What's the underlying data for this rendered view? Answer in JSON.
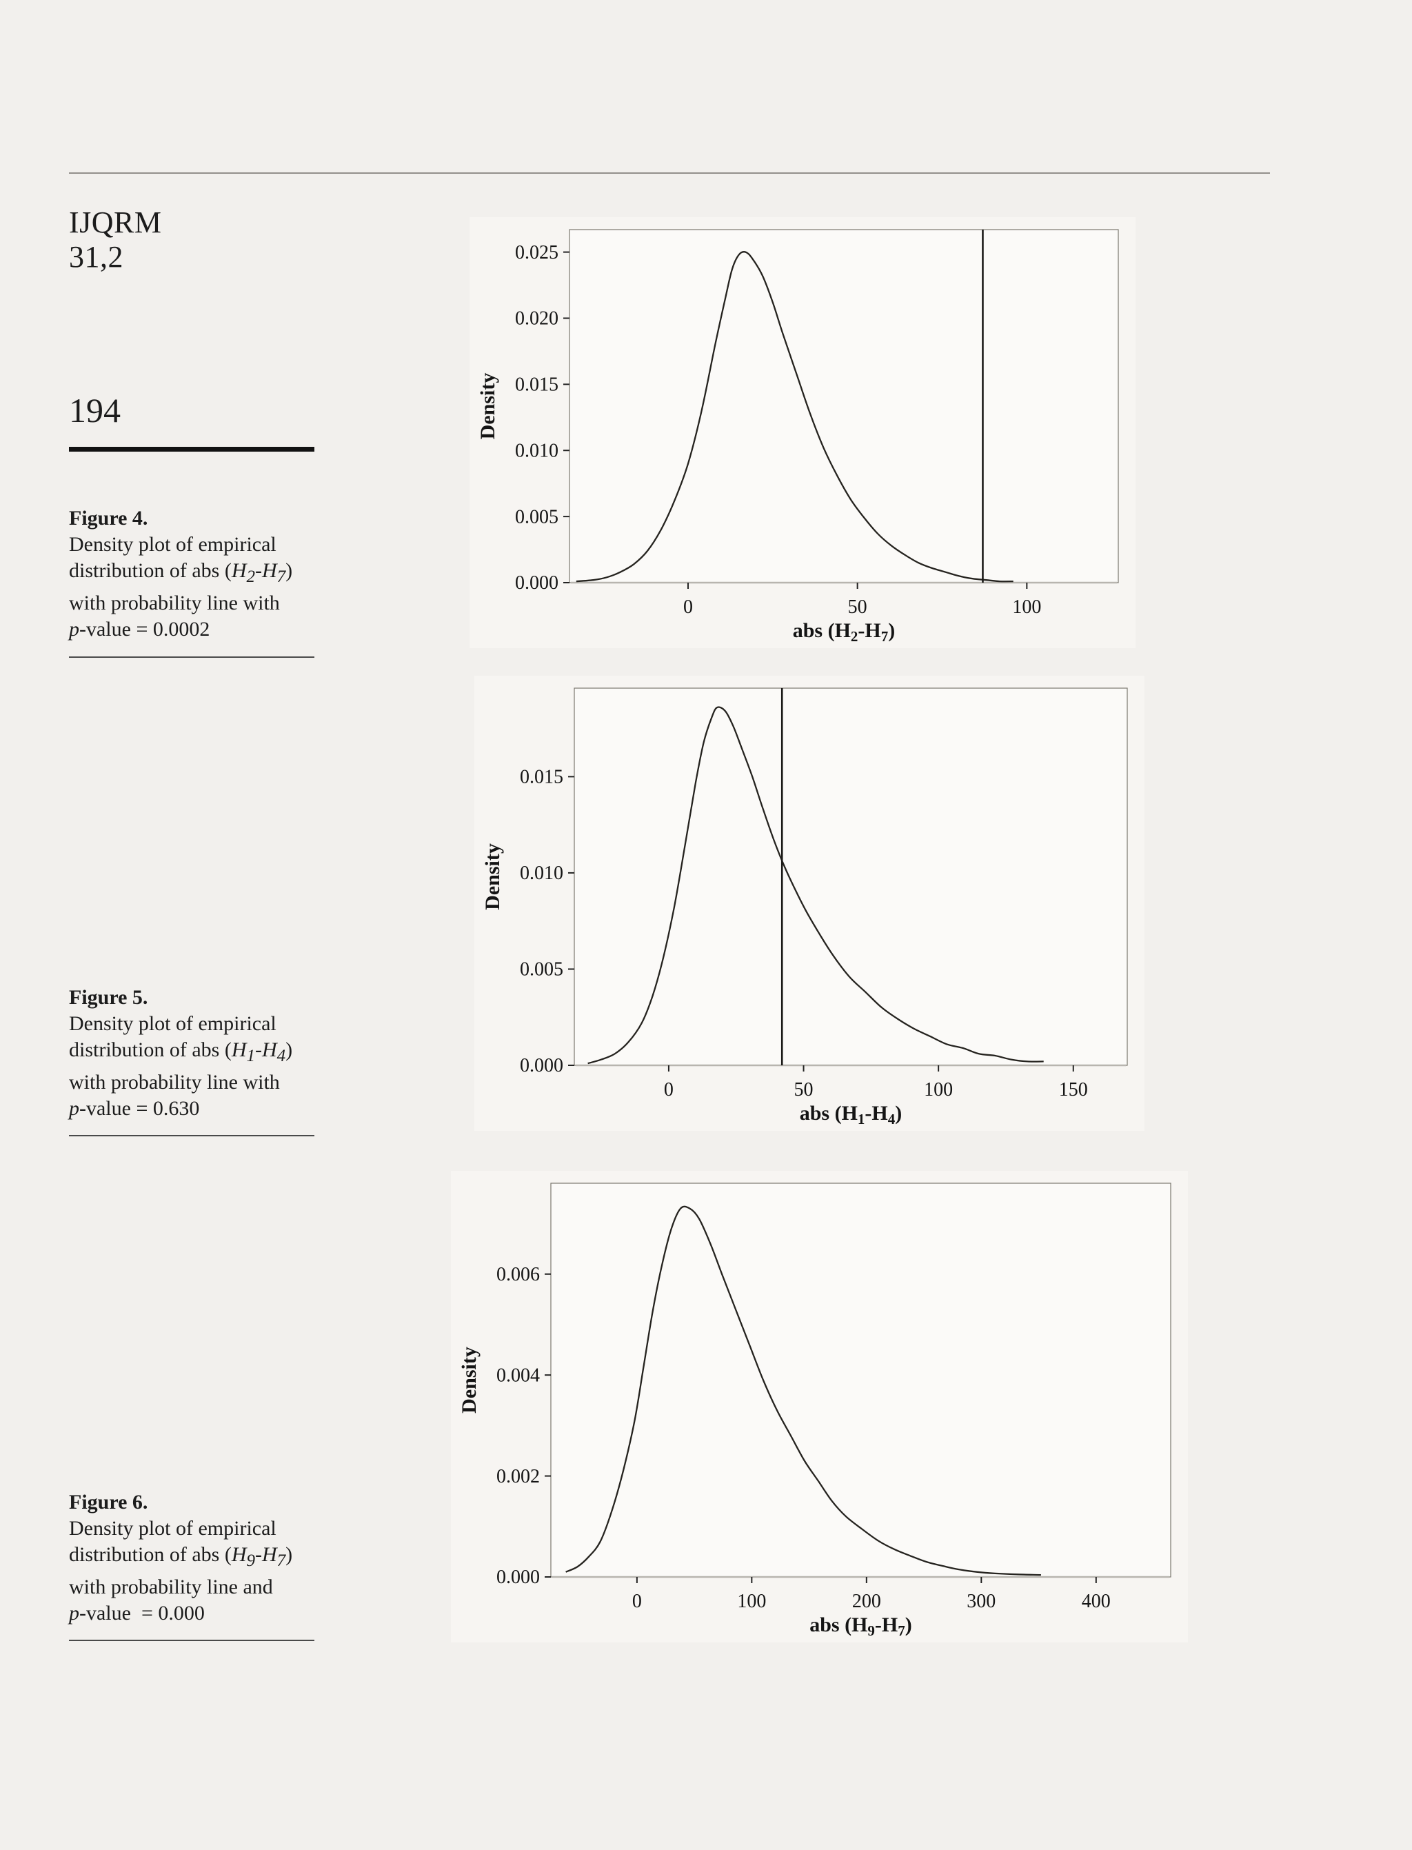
{
  "page": {
    "journal": "IJQRM",
    "issue": "31,2",
    "page_number": "194"
  },
  "captions": [
    {
      "title": "Figure 4.",
      "lines": [
        "Density plot of empirical",
        "distribution of abs (<i>H<sub>2</sub>-H<sub>7</sub></i>)",
        "with probability line with",
        "<i>p</i>-value = 0.0002"
      ]
    },
    {
      "title": "Figure 5.",
      "lines": [
        "Density plot of empirical",
        "distribution of abs (<i>H<sub>1</sub>-H<sub>4</sub></i>)",
        "with probability line with",
        "<i>p</i>-value = 0.630"
      ]
    },
    {
      "title": "Figure 6.",
      "lines": [
        "Density plot of empirical",
        "distribution of abs (<i>H<sub>9</sub>-H<sub>7</sub></i>)",
        "with probability line and",
        "<i>p</i>-value &nbsp;= 0.000"
      ]
    }
  ],
  "chart_data": [
    {
      "name": "figure-4-density-plot",
      "type": "line",
      "ylabel": "Density",
      "xlabel": "abs (H₂-H₇)",
      "ylabel_parts": [
        {
          "t": "Density"
        }
      ],
      "xlabel_parts": [
        {
          "t": "abs (H"
        },
        {
          "t": "2",
          "sub": true
        },
        {
          "t": "-H"
        },
        {
          "t": "7",
          "sub": true
        },
        {
          "t": ")"
        }
      ],
      "xlim": [
        -35,
        127
      ],
      "ylim": [
        0,
        0.0267
      ],
      "xticks": [
        0,
        50,
        100
      ],
      "yticks": [
        0,
        0.005,
        0.01,
        0.015,
        0.02,
        0.025
      ],
      "ytick_decimals": 3,
      "probability_line_x": 87,
      "zero_line": true,
      "legend": "none",
      "grid": false,
      "curve": [
        [
          -33,
          0.0001
        ],
        [
          -28,
          0.0002
        ],
        [
          -24,
          0.0004
        ],
        [
          -20,
          0.0008
        ],
        [
          -16,
          0.0014
        ],
        [
          -12,
          0.0024
        ],
        [
          -8,
          0.004
        ],
        [
          -4,
          0.0062
        ],
        [
          0,
          0.009
        ],
        [
          4,
          0.013
        ],
        [
          8,
          0.018
        ],
        [
          11,
          0.0215
        ],
        [
          13,
          0.0237
        ],
        [
          15,
          0.0248
        ],
        [
          17,
          0.025
        ],
        [
          19,
          0.0245
        ],
        [
          22,
          0.0232
        ],
        [
          25,
          0.0212
        ],
        [
          28,
          0.0188
        ],
        [
          32,
          0.0158
        ],
        [
          36,
          0.0128
        ],
        [
          40,
          0.0102
        ],
        [
          44,
          0.0081
        ],
        [
          48,
          0.0063
        ],
        [
          52,
          0.0049
        ],
        [
          56,
          0.0037
        ],
        [
          60,
          0.0028
        ],
        [
          64,
          0.0021
        ],
        [
          68,
          0.0015
        ],
        [
          72,
          0.0011
        ],
        [
          76,
          0.0008
        ],
        [
          80,
          0.0005
        ],
        [
          84,
          0.0003
        ],
        [
          88,
          0.0002
        ],
        [
          92,
          0.0001
        ],
        [
          96,
          0.0001
        ]
      ]
    },
    {
      "name": "figure-5-density-plot",
      "type": "line",
      "ylabel": "Density",
      "xlabel": "abs (H₁-H₄)",
      "ylabel_parts": [
        {
          "t": "Density"
        }
      ],
      "xlabel_parts": [
        {
          "t": "abs (H"
        },
        {
          "t": "1",
          "sub": true
        },
        {
          "t": "-H"
        },
        {
          "t": "4",
          "sub": true
        },
        {
          "t": ")"
        }
      ],
      "xlim": [
        -35,
        170
      ],
      "ylim": [
        0,
        0.0196
      ],
      "xticks": [
        0,
        50,
        100,
        150
      ],
      "yticks": [
        0,
        0.005,
        0.01,
        0.015
      ],
      "ytick_decimals": 3,
      "probability_line_x": 42,
      "zero_line": true,
      "legend": "none",
      "grid": false,
      "curve": [
        [
          -30,
          0.0001
        ],
        [
          -25,
          0.0003
        ],
        [
          -20,
          0.0006
        ],
        [
          -15,
          0.0012
        ],
        [
          -10,
          0.0022
        ],
        [
          -6,
          0.0036
        ],
        [
          -2,
          0.0056
        ],
        [
          2,
          0.0082
        ],
        [
          6,
          0.0114
        ],
        [
          10,
          0.0147
        ],
        [
          13,
          0.0168
        ],
        [
          16,
          0.0181
        ],
        [
          18,
          0.0186
        ],
        [
          21,
          0.0184
        ],
        [
          24,
          0.0176
        ],
        [
          27,
          0.0165
        ],
        [
          31,
          0.015
        ],
        [
          35,
          0.0133
        ],
        [
          39,
          0.0117
        ],
        [
          43,
          0.0103
        ],
        [
          47,
          0.0091
        ],
        [
          51,
          0.008
        ],
        [
          56,
          0.0068
        ],
        [
          61,
          0.0057
        ],
        [
          67,
          0.0046
        ],
        [
          73,
          0.0038
        ],
        [
          79,
          0.003
        ],
        [
          85,
          0.0024
        ],
        [
          91,
          0.0019
        ],
        [
          97,
          0.0015
        ],
        [
          103,
          0.0011
        ],
        [
          109,
          0.0009
        ],
        [
          115,
          0.0006
        ],
        [
          121,
          0.0005
        ],
        [
          127,
          0.0003
        ],
        [
          133,
          0.0002
        ],
        [
          139,
          0.0002
        ]
      ]
    },
    {
      "name": "figure-6-density-plot",
      "type": "line",
      "ylabel": "Density",
      "xlabel": "abs (H₉-H₇)",
      "ylabel_parts": [
        {
          "t": "Density"
        }
      ],
      "xlabel_parts": [
        {
          "t": "abs (H"
        },
        {
          "t": "9",
          "sub": true
        },
        {
          "t": "-H"
        },
        {
          "t": "7",
          "sub": true
        },
        {
          "t": ")"
        }
      ],
      "xlim": [
        -75,
        465
      ],
      "ylim": [
        0,
        0.0078
      ],
      "xticks": [
        0,
        100,
        200,
        300,
        400
      ],
      "yticks": [
        0,
        0.002,
        0.004,
        0.006
      ],
      "ytick_decimals": 3,
      "probability_line_x": null,
      "zero_line": true,
      "legend": "none",
      "grid": false,
      "curve": [
        [
          -62,
          0.0001
        ],
        [
          -52,
          0.0002
        ],
        [
          -42,
          0.0004
        ],
        [
          -32,
          0.0007
        ],
        [
          -22,
          0.0013
        ],
        [
          -12,
          0.0021
        ],
        [
          -2,
          0.0031
        ],
        [
          6,
          0.0042
        ],
        [
          14,
          0.0053
        ],
        [
          22,
          0.0062
        ],
        [
          30,
          0.0069
        ],
        [
          38,
          0.0073
        ],
        [
          46,
          0.0073
        ],
        [
          54,
          0.0071
        ],
        [
          64,
          0.0066
        ],
        [
          74,
          0.006
        ],
        [
          86,
          0.0053
        ],
        [
          98,
          0.0046
        ],
        [
          110,
          0.0039
        ],
        [
          122,
          0.0033
        ],
        [
          134,
          0.0028
        ],
        [
          146,
          0.0023
        ],
        [
          158,
          0.0019
        ],
        [
          170,
          0.0015
        ],
        [
          182,
          0.0012
        ],
        [
          196,
          0.00095
        ],
        [
          210,
          0.00072
        ],
        [
          224,
          0.00055
        ],
        [
          238,
          0.00042
        ],
        [
          252,
          0.0003
        ],
        [
          266,
          0.00022
        ],
        [
          280,
          0.00015
        ],
        [
          296,
          0.0001
        ],
        [
          312,
          7e-05
        ],
        [
          332,
          5e-05
        ],
        [
          352,
          4e-05
        ]
      ]
    }
  ]
}
